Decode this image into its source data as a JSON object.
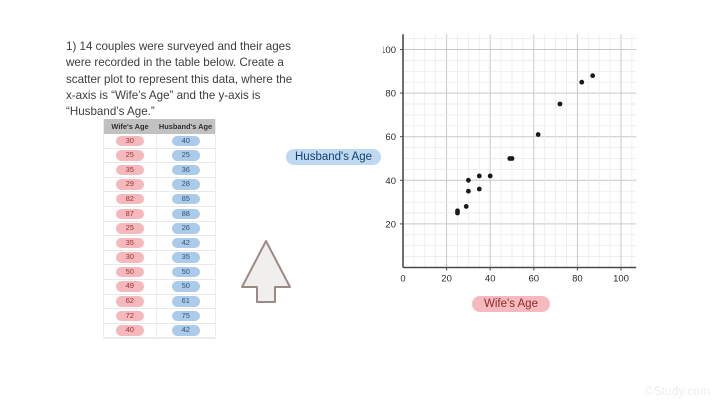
{
  "problem": {
    "lines": [
      "1) 14 couples were surveyed and their ages",
      "were recorded in the table below. Create a",
      "scatter plot to represent this data, where the",
      "x-axis is “Wife’s Age” and the y-axis is",
      "“Husband’s Age.”"
    ]
  },
  "table": {
    "headers": [
      "Wife's Age",
      "Husband's Age"
    ],
    "rows": [
      [
        30,
        40
      ],
      [
        25,
        25
      ],
      [
        35,
        36
      ],
      [
        29,
        28
      ],
      [
        82,
        85
      ],
      [
        87,
        88
      ],
      [
        25,
        26
      ],
      [
        35,
        42
      ],
      [
        30,
        35
      ],
      [
        50,
        50
      ],
      [
        49,
        50
      ],
      [
        62,
        61
      ],
      [
        72,
        75
      ],
      [
        40,
        42
      ]
    ]
  },
  "labels": {
    "y_axis_label": "Husband's Age",
    "x_axis_label": "Wife's Age"
  },
  "chart_data": {
    "type": "scatter",
    "x": [
      30,
      25,
      35,
      29,
      82,
      87,
      25,
      35,
      30,
      50,
      49,
      62,
      72,
      40
    ],
    "y": [
      40,
      25,
      36,
      28,
      85,
      88,
      26,
      42,
      35,
      50,
      50,
      61,
      75,
      42
    ],
    "xlabel": "Wife's Age",
    "ylabel": "Husband's Age",
    "xlim": [
      0,
      107
    ],
    "ylim": [
      0,
      107
    ],
    "xticks": [
      0,
      20,
      40,
      60,
      80,
      100
    ],
    "yticks": [
      20,
      40,
      60,
      80,
      100
    ],
    "grid": "major+minor",
    "minor_step": 5,
    "major_step": 20,
    "point_color": "#1a1a1a"
  },
  "icons": {
    "arrow": "up-arrow"
  },
  "watermark": "©Study.com",
  "colors": {
    "wife_highlight": "#f5b8bc",
    "wife_text": "#9c3434",
    "husband_highlight": "#abcbe9",
    "husband_text": "#2f5680",
    "y_label_highlight": "#bed9f1",
    "y_label_text": "#14406d",
    "x_label_highlight": "#f6b9be",
    "x_label_text": "#8c2b2b",
    "table_header_bg": "#c1c1c1",
    "grid_major": "#c9c9c9",
    "grid_minor": "#e9e9e9",
    "axis": "#4a4a4a",
    "point": "#1a1a1a"
  }
}
